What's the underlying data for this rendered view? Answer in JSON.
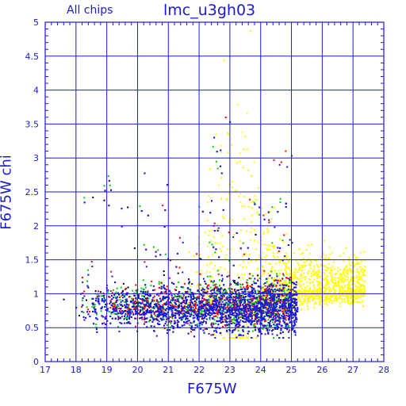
{
  "chart_data": {
    "type": "scatter",
    "title": "lmc_u3gh03",
    "subtitle": "All chips",
    "xlabel": "F675W",
    "ylabel": "F675W chi",
    "xlim": [
      17,
      28
    ],
    "ylim": [
      0,
      5
    ],
    "x_ticks": [
      "17",
      "18",
      "19",
      "20",
      "21",
      "22",
      "23",
      "24",
      "25",
      "26",
      "27",
      "28"
    ],
    "y_ticks": [
      "0",
      "0.5",
      "1",
      "1.5",
      "2",
      "2.5",
      "3",
      "3.5",
      "4",
      "4.5",
      "5"
    ],
    "grid": true,
    "series": [
      {
        "color": "#1a1ad6",
        "x_range": [
          18.0,
          25.2
        ],
        "core_x": 22.8,
        "core_y": 0.78,
        "point_count": 3000
      },
      {
        "color": "#00cc00",
        "x_range": [
          18.0,
          25.0
        ],
        "core_x": 22.0,
        "core_y": 0.85,
        "point_count": 650
      },
      {
        "color": "#ff0000",
        "x_range": [
          18.0,
          25.0
        ],
        "core_x": 22.0,
        "core_y": 0.85,
        "point_count": 550
      },
      {
        "color": "#ffff00",
        "x_range": [
          21.5,
          27.4
        ],
        "core_x": 25.5,
        "core_y": 1.05,
        "point_count": 1600
      },
      {
        "color": "#000000",
        "x_range": [
          17.6,
          24.0
        ],
        "core_x": 20.0,
        "core_y": 0.9,
        "point_count": 150
      }
    ]
  },
  "colors": {
    "axis": "#1a1ad6",
    "background": "#ffffff"
  }
}
